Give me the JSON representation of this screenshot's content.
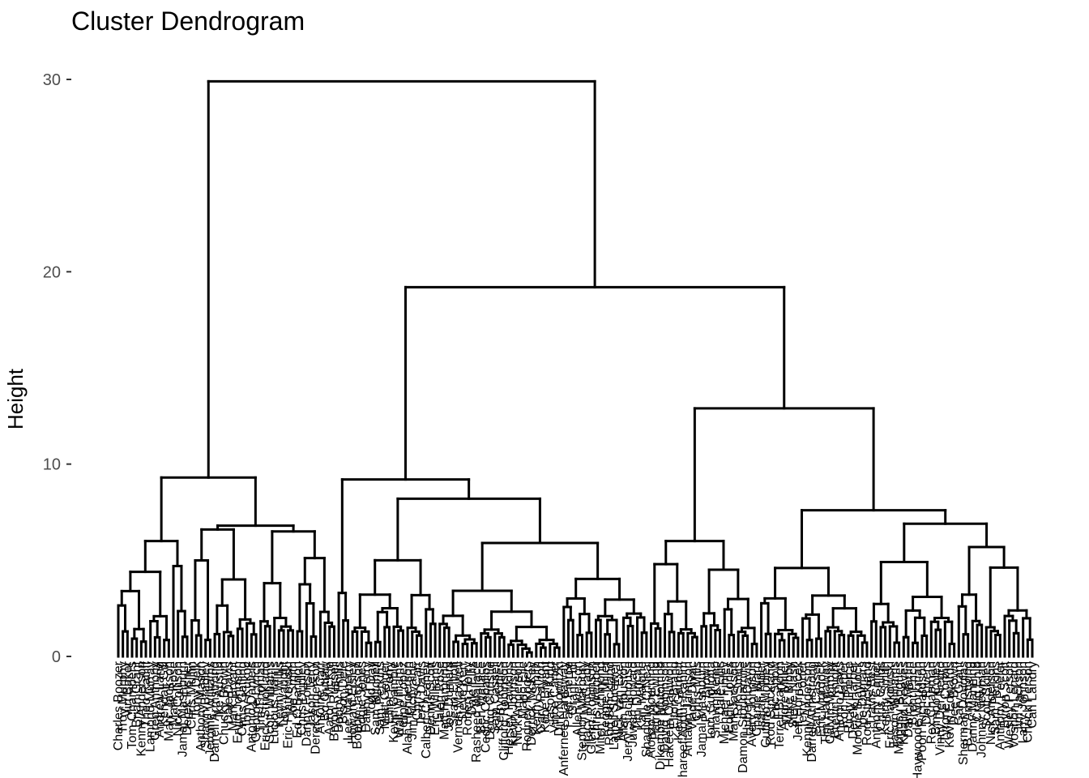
{
  "chart_data": {
    "type": "dendrogram",
    "title": "Cluster Dendrogram",
    "xlabel": "",
    "ylabel": "Height",
    "ylim": [
      0,
      30
    ],
    "y_ticks": [
      0,
      10,
      20,
      30
    ],
    "grid": false,
    "leaves": [
      "Charles Boozer",
      "Troy Murphy",
      "Vin Baker",
      "Tom Chambers",
      "Brian Grant",
      "Kenny Anderson",
      "Theo Ratliff",
      "Lamond Murray",
      "Greg Anthony",
      "Andrew Lang",
      "Kendall Gill",
      "Marc Jackson",
      "Malik Rose",
      "Nick Collison",
      "Jamal Mashburn",
      "Derek Fisher",
      "Chris Mullin",
      "Tony Delk",
      "Anthony Mason",
      "Shawn Bradley",
      "Jerome Williams",
      "Darrell Armstrong",
      "Ike Austin",
      "Chucky Brown",
      "Dale Davis",
      "Mark Bryant",
      "Ervin Johnson",
      "Chris Gatling",
      "Tony Kukoc",
      "Antonio Daniels",
      "George Lynch",
      "Tim Thomas",
      "Erick Strickland",
      "Scott Williams",
      "Lucious Harris",
      "Kevin Willis",
      "Loy Vaught",
      "Eric Piatkowski",
      "Joe Smith",
      "Ed O'Bannon",
      "Chris Dudley",
      "Danny Fortson",
      "Jason Terry",
      "Derek Anderson",
      "Antoine Carr",
      "Bo Outlaw",
      "Aaron McKie",
      "Bryon Russell",
      "Bobby Phills",
      "Bison Dele",
      "Lee Mayberry",
      "Howard Eisley",
      "Bobby Jackson",
      "Eddie Jones",
      "Danny Ferry",
      "Todd Day",
      "Sam Mitchell",
      "Sam Perkins",
      "Matt Geiger",
      "Elliot Perry",
      "Kevin Gamble",
      "Walt Williams",
      "Felipe Lopez",
      "Alan Henderson",
      "Jim McIlvaine",
      "Chris Carr",
      "Terry Davis",
      "Calbert Cheaney",
      "Dennis Scott",
      "Eric Williams",
      "Jalen Rose",
      "Matt Harpring",
      "Joe Dumars",
      "Sean Elliott",
      "Vernon Maxwell",
      "Steve Kerr",
      "Robert Horry",
      "Dale Ellis",
      "Rasheed Wallace",
      "Ben Wallace",
      "Cedric Ceballos",
      "Doug Christie",
      "Sam Cassell",
      "Kerry Kittles",
      "Clifford Robinson",
      "Hersey Hawkins",
      "Kevin Johnson",
      "Nick Anderson",
      "Mario Elie",
      "Rodney Rogers",
      "Derrick McKey",
      "Kenny Smith",
      "Gary Payton",
      "Kobe Bryant",
      "Jason Kidd",
      "Vince Carter",
      "Dirk Nowitzki",
      "Anfernee Hardaway",
      "Paul Pierce",
      "Grant Hill",
      "Allen Iverson",
      "Stephon Marbury",
      "Tracy McGrady",
      "Glenn Robinson",
      "Chris Webber",
      "Mitch Richmond",
      "Reggie Miller",
      "Rod Strickland",
      "Latrell Sprewell",
      "Nick Van Exel",
      "Allan Houston",
      "Jerry Stackhouse",
      "Juwan Howard",
      "Tim Duncan",
      "Karl Malone",
      "Shaquille O'Neal",
      "Alonzo Mourning",
      "Patrick Ewing",
      "Dikembe Mutombo",
      "David Robinson",
      "Hakeem Olajuwon",
      "Elton Brand",
      "Kevin Garnett",
      "Shareef Abdur-Rahim",
      "Antawn Jamison",
      "Vlade Divac",
      "Chris Mills",
      "Jamal Mashburn",
      "P.J. Brown",
      "Tom Gugliotta",
      "Shawn Kemp",
      "Dale Ellis",
      "Michael Finley",
      "Eddie Jones",
      "Mark Jackson",
      "Rik Smits",
      "Damon Stoudamire",
      "Hubert Davis",
      "Avery Johnson",
      "Charlie Ward",
      "Isaiah Rider",
      "Cuttino Mobley",
      "Rod Strickland",
      "Eric Snow",
      "Terrell Brandon",
      "Andre Miller",
      "Mike Bibby",
      "Steve Nash",
      "Jeff Hornacek",
      "Terry Porter",
      "Kenny Anderson",
      "Darrell Armstrong",
      "Sam Cassell",
      "Eric Murdock",
      "Tim Hardaway",
      "Calvin Murphy",
      "Brevin Knight",
      "Antonio Davis",
      "Ron Harper",
      "Ricky Pierce",
      "Derek Harper",
      "Mookie Blaylock",
      "Joe Dumars",
      "Rod Strickland",
      "Travis Best",
      "Anthony Carter",
      "Chris Childs",
      "Kenny Smith",
      "Eric Piatkowski",
      "Jason Williams",
      "Muggsy Bogues",
      "Khalid Reeves",
      "Darick Martin",
      "Brent Price",
      "Haywoode Workman",
      "Pooh Richardson",
      "Doc Rivers",
      "Rex Chapman",
      "Bimbo Coles",
      "Vinny Del Negro",
      "Tyrone Corbin",
      "Kevin Edwards",
      "Dee Brown",
      "Gary Grant",
      "Sherman Douglas",
      "B.J. Armstrong",
      "Danny Manning",
      "Craig Ehlo",
      "Johnny Newman",
      "Scott Skiles",
      "Nick Anderson",
      "Sam Perkins",
      "Anthony Peeler",
      "Byron Scott",
      "Wesley Person",
      "Voshon Lenard",
      "Jim Jackson",
      "Larry Johnson",
      "Chuck Person",
      "Carl Landry"
    ]
  }
}
